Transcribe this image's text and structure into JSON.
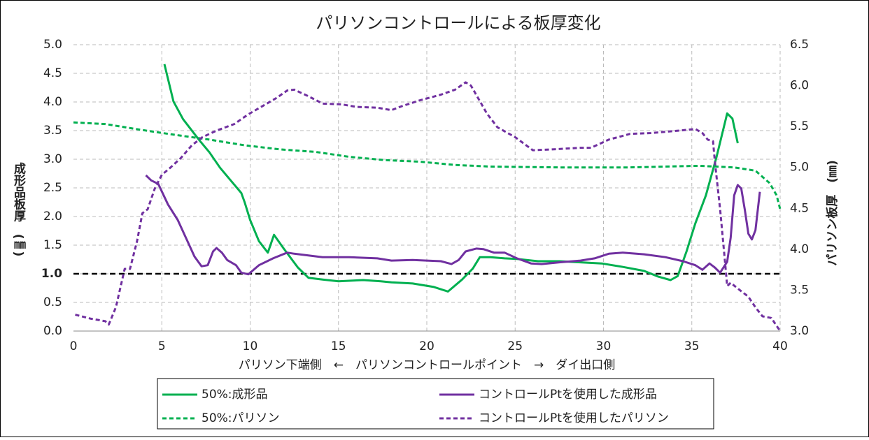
{
  "chart_data": {
    "type": "line",
    "title": "パリソンコントロールによる板厚変化",
    "x_label": "パリソン下端側　←　パリソンコントロールポイント　→　ダイ出口側",
    "y_label": "成形品板厚　(㎜)",
    "y2_label": "パリソン板厚　(㎜)",
    "xlim": [
      0,
      40
    ],
    "xticks": [
      0,
      5,
      10,
      15,
      20,
      25,
      30,
      35,
      40
    ],
    "ylim": [
      0,
      5
    ],
    "yticks": [
      {
        "value": 0,
        "label": "0.0"
      },
      {
        "value": 0.5,
        "label": "0.5"
      },
      {
        "value": 1,
        "label": "1.0"
      },
      {
        "value": 1.5,
        "label": "1.5"
      },
      {
        "value": 2,
        "label": "2.0"
      },
      {
        "value": 2.5,
        "label": "2.5"
      },
      {
        "value": 3,
        "label": "3.0"
      },
      {
        "value": 3.5,
        "label": "3.5"
      },
      {
        "value": 4,
        "label": "4.0"
      },
      {
        "value": 4.5,
        "label": "4.5"
      },
      {
        "value": 5,
        "label": "5.0"
      }
    ],
    "y2lim": [
      3,
      6.5
    ],
    "y2ticks": [
      {
        "value": 3,
        "label": "3.0"
      },
      {
        "value": 3.5,
        "label": "3.5"
      },
      {
        "value": 4,
        "label": "4.0"
      },
      {
        "value": 4.5,
        "label": "4.5"
      },
      {
        "value": 5,
        "label": "5.0"
      },
      {
        "value": 5.5,
        "label": "5.5"
      },
      {
        "value": 6,
        "label": "6.0"
      },
      {
        "value": 6.5,
        "label": "6.5"
      }
    ],
    "grid": true,
    "hline": 1,
    "series": [
      {
        "name": "50%:成形品",
        "color": "#00b050",
        "dash": false,
        "x": [
          5.15,
          5.66,
          6.2,
          7.1,
          7.7,
          8.3,
          8.9,
          9.5,
          9.7,
          10.0,
          10.5,
          11.0,
          11.35,
          11.9,
          12.7,
          13.3,
          14.1,
          15.0,
          16.4,
          17.4,
          18.0,
          19.2,
          20.4,
          21.2,
          22.0,
          22.6,
          23.0,
          23.6,
          24.4,
          25.1,
          26.3,
          27.5,
          28.7,
          29.9,
          31.1,
          32.3,
          33.1,
          33.8,
          34.2,
          34.7,
          35.2,
          35.8,
          36.4,
          37.0,
          37.3,
          37.6
        ],
        "values": [
          4.66,
          4.01,
          3.7,
          3.34,
          3.12,
          2.85,
          2.63,
          2.41,
          2.24,
          1.94,
          1.57,
          1.37,
          1.68,
          1.44,
          1.11,
          0.93,
          0.9,
          0.87,
          0.89,
          0.87,
          0.85,
          0.83,
          0.77,
          0.69,
          0.9,
          1.09,
          1.29,
          1.29,
          1.27,
          1.26,
          1.22,
          1.22,
          1.2,
          1.18,
          1.12,
          1.05,
          0.95,
          0.89,
          0.96,
          1.39,
          1.88,
          2.37,
          3.04,
          3.8,
          3.71,
          3.28
        ]
      },
      {
        "name": "コントロールPtを使用した成形品",
        "color": "#7030a0",
        "dash": false,
        "x": [
          4.1,
          4.4,
          4.8,
          5.35,
          5.9,
          6.45,
          6.85,
          7.25,
          7.6,
          7.9,
          8.1,
          8.4,
          8.7,
          9.2,
          9.5,
          9.9,
          10.5,
          11.3,
          12.1,
          12.5,
          13.3,
          14.1,
          15.6,
          17.2,
          18.0,
          19.2,
          20.8,
          21.4,
          21.8,
          22.2,
          22.8,
          23.2,
          23.8,
          24.4,
          25.1,
          25.9,
          26.5,
          27.5,
          28.7,
          29.5,
          30.3,
          31.1,
          32.3,
          33.5,
          34.5,
          35.2,
          35.6,
          36.0,
          36.3,
          36.6,
          37.0,
          37.2,
          37.4,
          37.6,
          37.8,
          38.0,
          38.2,
          38.4,
          38.6,
          38.85
        ],
        "values": [
          2.72,
          2.63,
          2.57,
          2.21,
          1.94,
          1.57,
          1.3,
          1.13,
          1.15,
          1.39,
          1.45,
          1.37,
          1.24,
          1.15,
          1.02,
          0.99,
          1.15,
          1.27,
          1.37,
          1.35,
          1.32,
          1.29,
          1.29,
          1.27,
          1.23,
          1.24,
          1.22,
          1.17,
          1.24,
          1.39,
          1.44,
          1.43,
          1.37,
          1.37,
          1.27,
          1.18,
          1.17,
          1.2,
          1.23,
          1.27,
          1.35,
          1.37,
          1.34,
          1.29,
          1.22,
          1.15,
          1.07,
          1.18,
          1.11,
          1.02,
          1.21,
          1.63,
          2.37,
          2.55,
          2.49,
          2.12,
          1.7,
          1.6,
          1.76,
          2.43
        ]
      },
      {
        "name": "50%:パリソン",
        "color": "#00b050",
        "dash": true,
        "axis": "y2",
        "x": [
          0,
          1.8,
          3.8,
          5.7,
          7.7,
          9.7,
          11.7,
          13.7,
          15.6,
          17.6,
          19.6,
          21.6,
          23.6,
          27.5,
          29.5,
          31.5,
          35.4,
          37.4,
          38.6,
          39.4,
          39.8,
          40.0
        ],
        "values": [
          5.55,
          5.53,
          5.46,
          5.4,
          5.34,
          5.27,
          5.22,
          5.19,
          5.13,
          5.09,
          5.07,
          5.03,
          5.01,
          5.0,
          5.0,
          5.0,
          5.02,
          5.0,
          4.96,
          4.81,
          4.66,
          4.49
        ]
      },
      {
        "name": "コントロールPtを使用したパリソン",
        "color": "#7030a0",
        "dash": true,
        "axis": "y2",
        "x": [
          0.1,
          1.0,
          1.8,
          2.0,
          2.4,
          2.9,
          3.2,
          3.6,
          3.9,
          4.2,
          4.6,
          5.0,
          5.5,
          6.1,
          6.7,
          7.3,
          8.1,
          9.1,
          9.9,
          10.7,
          11.5,
          12.1,
          12.5,
          13.3,
          14.1,
          15.2,
          16.0,
          17.2,
          18.0,
          18.6,
          19.6,
          20.8,
          21.6,
          22.2,
          22.5,
          23.0,
          23.4,
          24.0,
          25.0,
          25.5,
          26.0,
          27.1,
          28.7,
          29.3,
          30.3,
          31.5,
          32.7,
          34.3,
          35.2,
          35.6,
          35.9,
          36.2,
          36.3,
          36.6,
          36.9,
          37.0,
          37.2,
          37.6,
          38.2,
          38.6,
          39.0,
          39.5,
          40.0
        ],
        "values": [
          3.2,
          3.15,
          3.12,
          3.08,
          3.29,
          3.76,
          3.76,
          4.1,
          4.44,
          4.49,
          4.74,
          4.91,
          5.0,
          5.12,
          5.27,
          5.37,
          5.45,
          5.53,
          5.65,
          5.75,
          5.85,
          5.94,
          5.95,
          5.87,
          5.78,
          5.77,
          5.74,
          5.73,
          5.7,
          5.75,
          5.82,
          5.89,
          5.95,
          6.04,
          6.0,
          5.81,
          5.66,
          5.49,
          5.37,
          5.29,
          5.21,
          5.22,
          5.24,
          5.24,
          5.34,
          5.41,
          5.42,
          5.45,
          5.47,
          5.42,
          5.34,
          5.32,
          5.08,
          4.49,
          3.8,
          3.55,
          3.59,
          3.52,
          3.42,
          3.29,
          3.18,
          3.16,
          3.0
        ]
      }
    ]
  }
}
